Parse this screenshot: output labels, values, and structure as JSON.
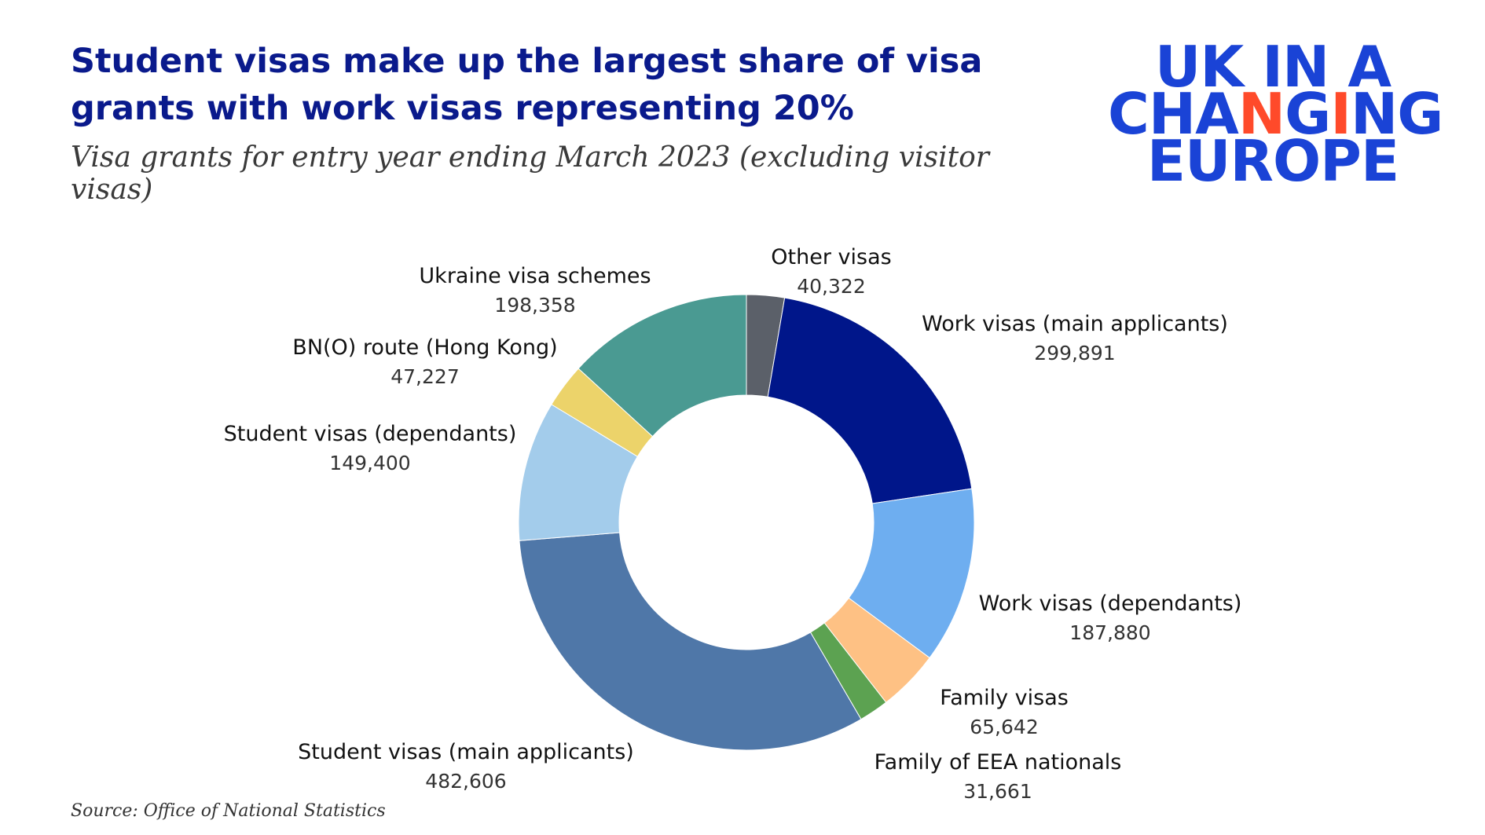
{
  "header": {
    "title": "Student visas make up the largest share of visa grants with work visas representing 20%",
    "subtitle": "Visa grants for entry year ending March 2023 (excluding visitor visas)"
  },
  "logo": {
    "line1": "UK IN A",
    "line2_pre": "CHA",
    "line2_accent1": "N",
    "line2_mid": "G",
    "line2_accent2": "I",
    "line2_post": "NG",
    "line3": "EUROPE",
    "colors": {
      "main": "#1a43d6",
      "accent": "#ff4a2a"
    }
  },
  "chart_data": {
    "type": "pie",
    "donut": true,
    "categories": [
      "Other visas",
      "Work visas (main applicants)",
      "Work visas (dependants)",
      "Family visas",
      "Family of EEA nationals",
      "Student visas (main applicants)",
      "Student visas (dependants)",
      "BN(O) route (Hong Kong)",
      "Ukraine visa schemes"
    ],
    "values": [
      40322,
      299891,
      187880,
      65642,
      31661,
      482606,
      149400,
      47227,
      198358
    ],
    "value_labels": [
      "40,322",
      "299,891",
      "187,880",
      "65,642",
      "31,661",
      "482,606",
      "149,400",
      "47,227",
      "198,358"
    ],
    "colors": [
      "#5b6069",
      "#00168a",
      "#6eaef0",
      "#fec184",
      "#5ca251",
      "#4f77a8",
      "#a3cceb",
      "#ecd36a",
      "#4a9a92"
    ],
    "legend": "none"
  },
  "footer": {
    "source": "Source: Office of National Statistics"
  }
}
